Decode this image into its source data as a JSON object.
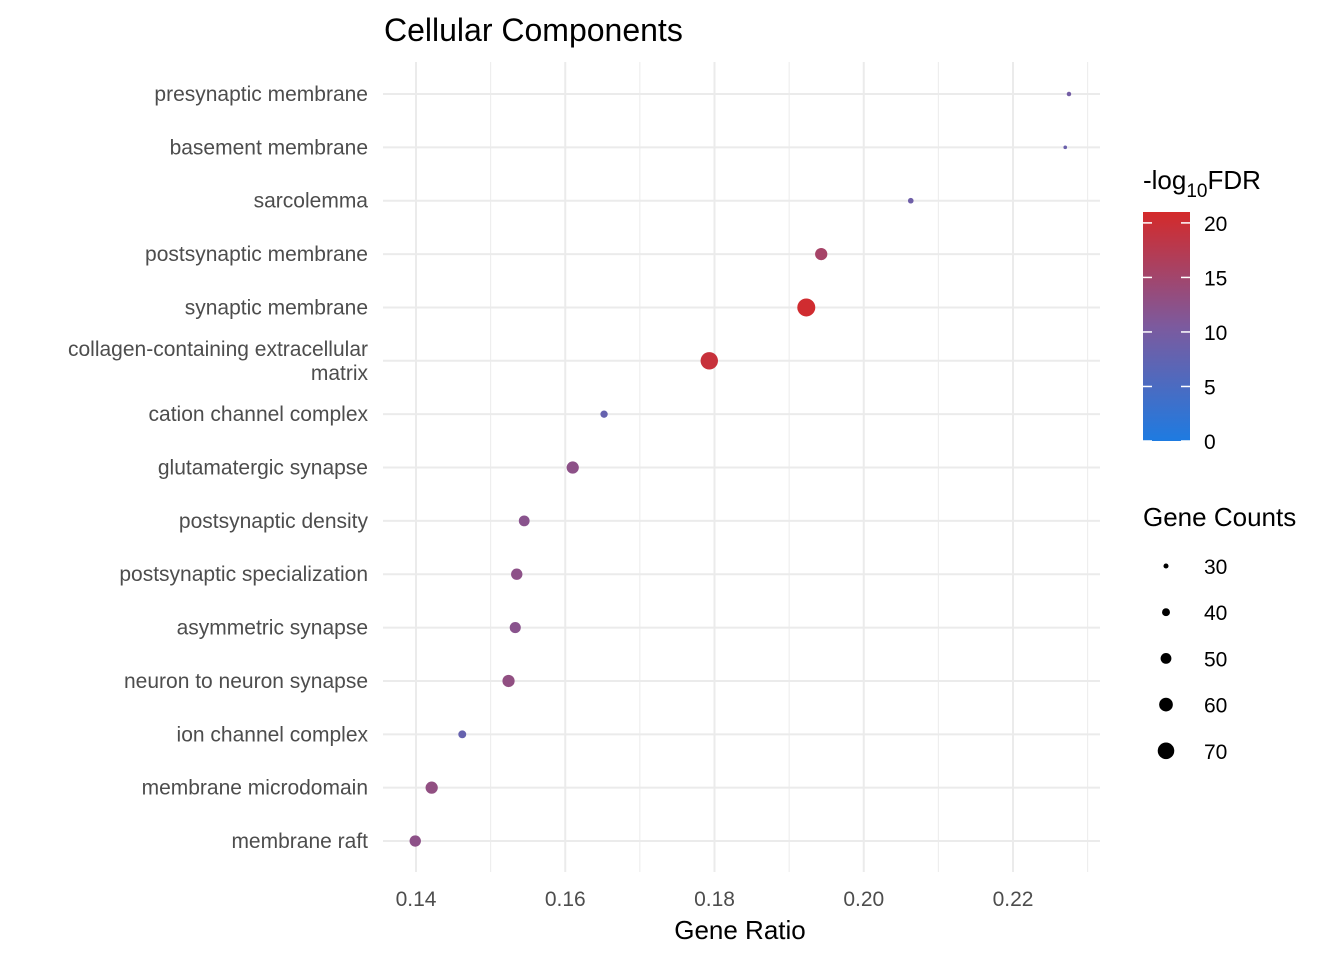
{
  "chart_data": {
    "type": "scatter",
    "title": "Cellular Components",
    "xlabel": "Gene Ratio",
    "ylabel": "",
    "xlim": [
      0.1375,
      0.2302
    ],
    "xticks": [
      "0.14",
      "0.16",
      "0.18",
      "0.20",
      "0.22"
    ],
    "xtick_values": [
      0.14,
      0.16,
      0.18,
      0.2,
      0.22
    ],
    "points": [
      {
        "term": [
          "presynaptic membrane"
        ],
        "x": 0.2275,
        "neglog10fdr": 9.5,
        "count": 28
      },
      {
        "term": [
          "basement membrane"
        ],
        "x": 0.227,
        "neglog10fdr": 8.5,
        "count": 25
      },
      {
        "term": [
          "sarcolemma"
        ],
        "x": 0.2063,
        "neglog10fdr": 9.0,
        "count": 32
      },
      {
        "term": [
          "postsynaptic membrane"
        ],
        "x": 0.1943,
        "neglog10fdr": 15.5,
        "count": 55
      },
      {
        "term": [
          "synaptic membrane"
        ],
        "x": 0.1923,
        "neglog10fdr": 20.5,
        "count": 75
      },
      {
        "term": [
          "collagen-containing extracellular",
          "matrix"
        ],
        "x": 0.1793,
        "neglog10fdr": 19.5,
        "count": 73
      },
      {
        "term": [
          "cation channel complex"
        ],
        "x": 0.1652,
        "neglog10fdr": 8.0,
        "count": 38
      },
      {
        "term": [
          "glutamatergic synapse"
        ],
        "x": 0.161,
        "neglog10fdr": 12.5,
        "count": 55
      },
      {
        "term": [
          "postsynaptic density"
        ],
        "x": 0.1545,
        "neglog10fdr": 12.0,
        "count": 50
      },
      {
        "term": [
          "postsynaptic specialization"
        ],
        "x": 0.1535,
        "neglog10fdr": 12.5,
        "count": 52
      },
      {
        "term": [
          "asymmetric synapse"
        ],
        "x": 0.1533,
        "neglog10fdr": 12.0,
        "count": 51
      },
      {
        "term": [
          "neuron to neuron synapse"
        ],
        "x": 0.1524,
        "neglog10fdr": 13.0,
        "count": 55
      },
      {
        "term": [
          "ion channel complex"
        ],
        "x": 0.1462,
        "neglog10fdr": 8.0,
        "count": 40
      },
      {
        "term": [
          "membrane microdomain"
        ],
        "x": 0.1421,
        "neglog10fdr": 13.0,
        "count": 55
      },
      {
        "term": [
          "membrane raft"
        ],
        "x": 0.1399,
        "neglog10fdr": 12.5,
        "count": 52
      }
    ],
    "color_legend": {
      "title_prefix": "-log",
      "title_subscript": "10",
      "title_suffix": "FDR",
      "min": 0,
      "max": 21,
      "ticks": [
        0,
        5,
        10,
        15,
        20
      ],
      "tick_labels": [
        "0",
        "5",
        "10",
        "15",
        "20"
      ],
      "colors": [
        "#1e7be1",
        "#7c5a9e",
        "#d42a2a"
      ]
    },
    "size_legend": {
      "title": "Gene Counts",
      "values": [
        30,
        40,
        50,
        60,
        70
      ],
      "labels": [
        "30",
        "40",
        "50",
        "60",
        "70"
      ]
    },
    "count_range": [
      25,
      75
    ]
  }
}
